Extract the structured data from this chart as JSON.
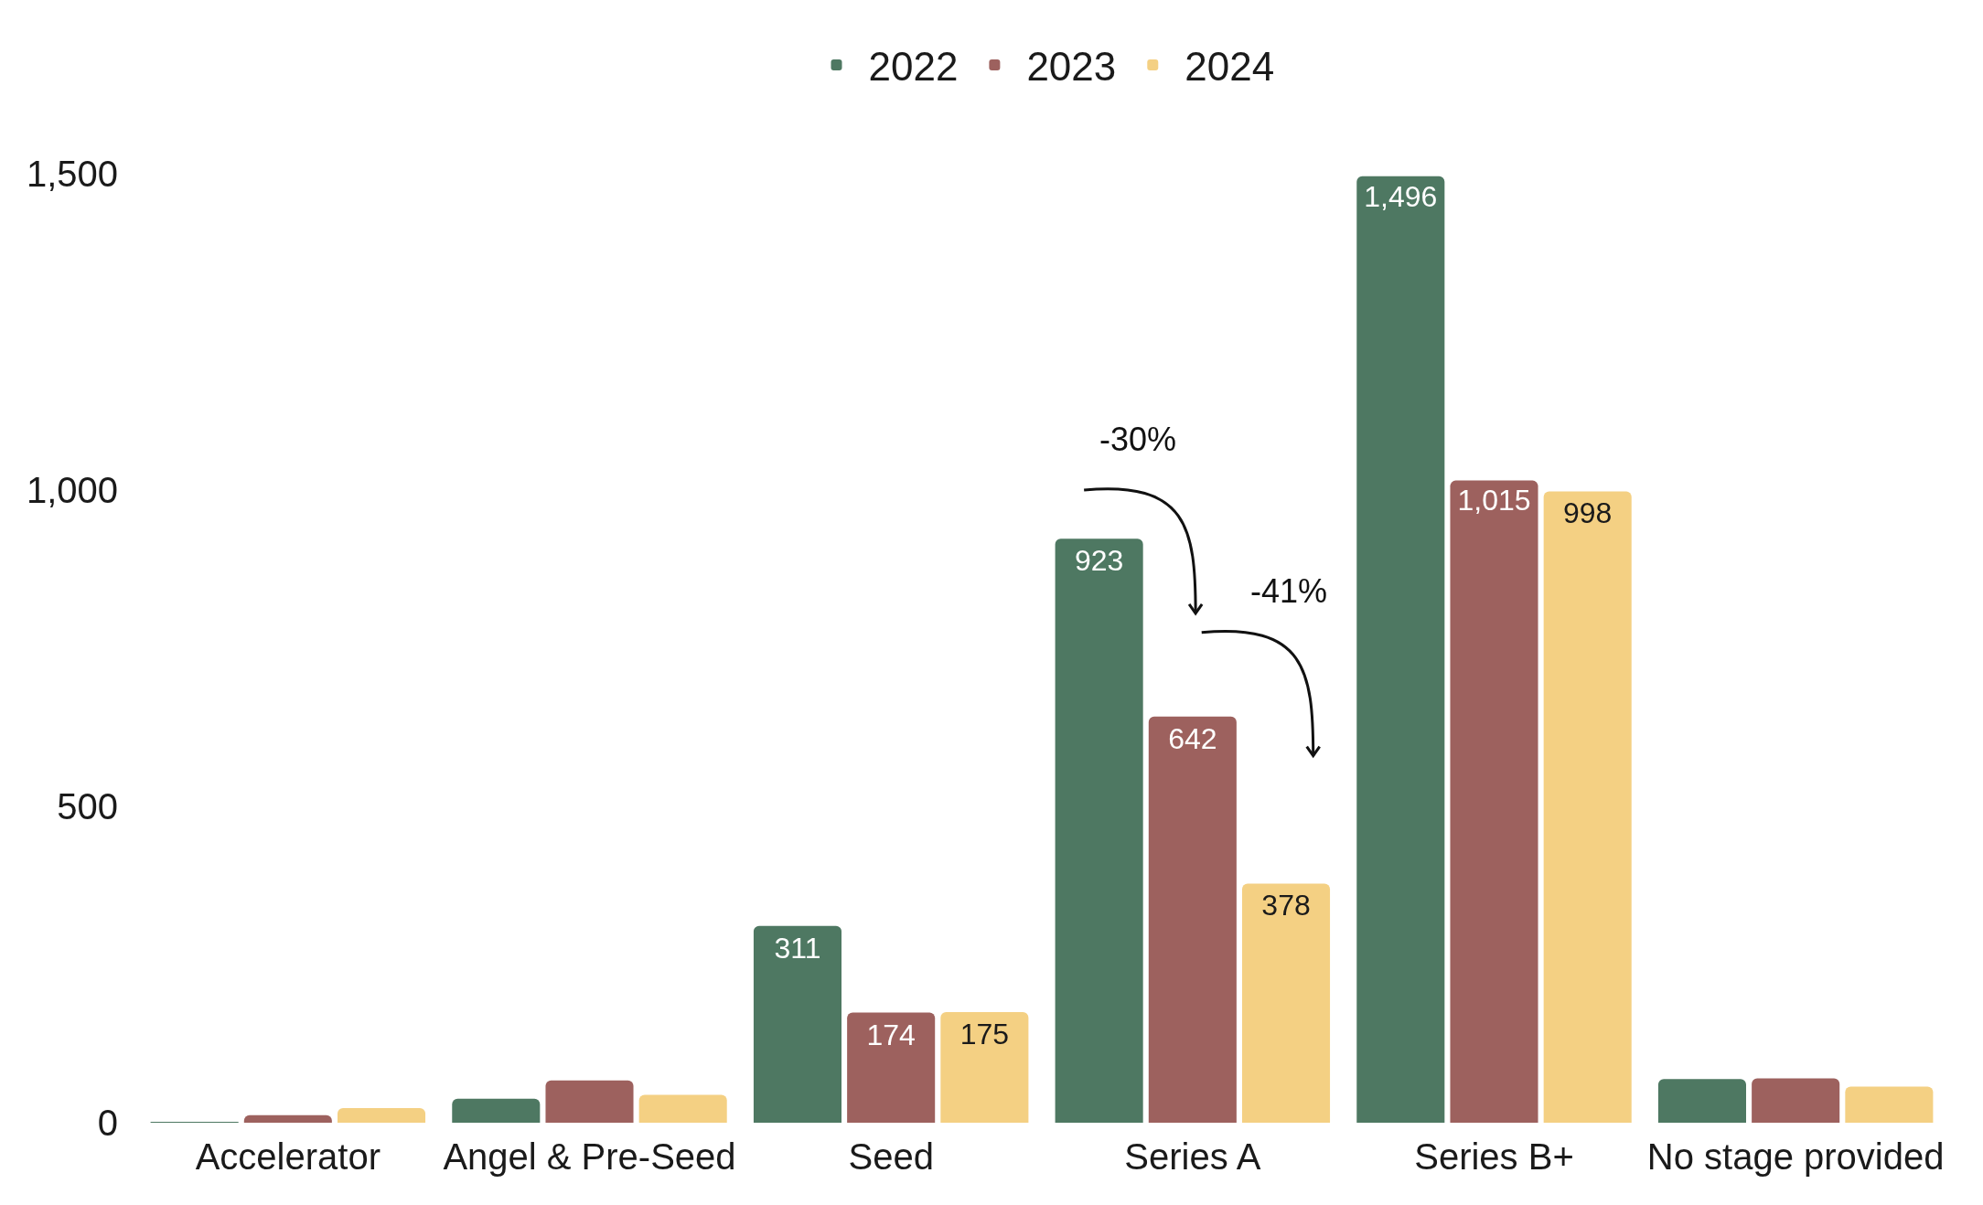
{
  "chart_data": {
    "type": "bar",
    "categories": [
      "Accelerator",
      "Angel & Pre-Seed",
      "Seed",
      "Series A",
      "Series B+",
      "No stage provided"
    ],
    "series": [
      {
        "name": "2022",
        "color": "#4e7862",
        "values": [
          1,
          38,
          311,
          923,
          1496,
          69
        ],
        "value_labels": [
          null,
          null,
          "311",
          "923",
          "1,496",
          null
        ]
      },
      {
        "name": "2023",
        "color": "#9d615e",
        "values": [
          12,
          67,
          174,
          642,
          1015,
          70
        ],
        "value_labels": [
          null,
          null,
          "174",
          "642",
          "1,015",
          null
        ]
      },
      {
        "name": "2024",
        "color": "#f4d083",
        "values": [
          23,
          44,
          175,
          378,
          998,
          57
        ],
        "value_labels": [
          null,
          null,
          "175",
          "378",
          "998",
          null
        ]
      }
    ],
    "ylim": [
      0,
      1500
    ],
    "yticks": [
      {
        "value": 0,
        "label": "0"
      },
      {
        "value": 500,
        "label": "500"
      },
      {
        "value": 1000,
        "label": "1,000"
      },
      {
        "value": 1500,
        "label": "1,500"
      }
    ],
    "grid": false,
    "legend": "top",
    "annotations": [
      "-30%",
      "-41%"
    ]
  }
}
